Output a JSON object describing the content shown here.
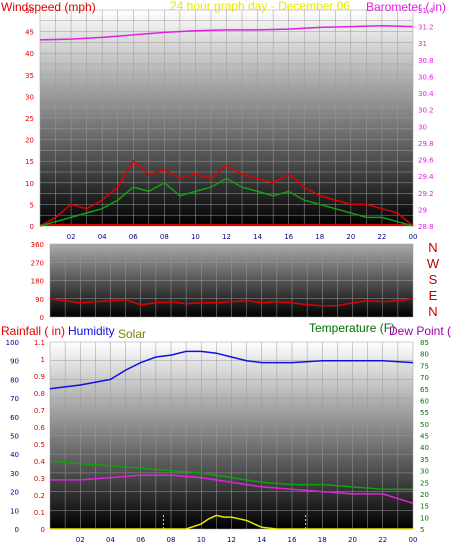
{
  "colors": {
    "red": "#e00000",
    "magenta": "#e020e0",
    "yellow": "#e8e800",
    "blue": "#1010e0",
    "green": "#10a010",
    "darkgreen": "#007000",
    "olive": "#808000",
    "navy": "#000080",
    "dewmagenta": "#a000a0"
  },
  "chart_data": [
    {
      "type": "line",
      "title": "24 hour graph day - December 06",
      "left_axis_label": "Windspeed (mph)",
      "right_axis_label": "Barometer ( in)",
      "x_ticks": [
        "02",
        "04",
        "06",
        "08",
        "10",
        "12",
        "14",
        "16",
        "18",
        "20",
        "22",
        "00"
      ],
      "ylim_left": [
        0,
        50
      ],
      "yticks_left": [
        "0",
        "5",
        "10",
        "15",
        "20",
        "25",
        "30",
        "35",
        "40",
        "45",
        "50"
      ],
      "ylim_right": [
        28.8,
        31.4
      ],
      "yticks_right": [
        "28.8",
        "29",
        "29.2",
        "29.4",
        "29.6",
        "29.8",
        "30",
        "30.2",
        "30.4",
        "30.6",
        "30.8",
        "31",
        "31.2",
        "31.4"
      ],
      "series": [
        {
          "name": "Barometer",
          "x": [
            0,
            2,
            4,
            6,
            8,
            10,
            12,
            14,
            16,
            18,
            20,
            22,
            24
          ],
          "y": [
            31.04,
            31.05,
            31.07,
            31.1,
            31.13,
            31.15,
            31.16,
            31.16,
            31.17,
            31.19,
            31.2,
            31.21,
            31.2
          ]
        },
        {
          "name": "Windspeed",
          "x": [
            0,
            1,
            2,
            3,
            4,
            5,
            6,
            7,
            8,
            9,
            10,
            11,
            12,
            13,
            14,
            15,
            16,
            17,
            18,
            19,
            20,
            21,
            22,
            23,
            24
          ],
          "y": [
            0,
            1,
            2,
            3,
            4,
            6,
            9,
            8,
            10,
            7,
            8,
            9,
            11,
            9,
            8,
            7,
            8,
            6,
            5,
            4,
            3,
            2,
            2,
            1,
            0
          ]
        },
        {
          "name": "Gust",
          "x": [
            0,
            1,
            2,
            3,
            4,
            5,
            6,
            7,
            8,
            9,
            10,
            11,
            12,
            13,
            14,
            15,
            16,
            17,
            18,
            19,
            20,
            21,
            22,
            23,
            24
          ],
          "y": [
            0,
            2,
            5,
            4,
            6,
            9,
            15,
            12,
            13,
            11,
            12,
            11,
            14,
            12,
            11,
            10,
            12,
            9,
            7,
            6,
            5,
            5,
            4,
            3,
            0
          ]
        }
      ]
    },
    {
      "type": "line",
      "title": "Wind direction",
      "compass_labels": [
        "N",
        "W",
        "S",
        "E",
        "N"
      ],
      "ylim": [
        0,
        360
      ],
      "yticks": [
        "0",
        "90",
        "180",
        "270",
        "360"
      ],
      "series": [
        {
          "name": "Direction",
          "x": [
            0,
            1,
            2,
            3,
            4,
            5,
            6,
            7,
            8,
            9,
            10,
            11,
            12,
            13,
            14,
            15,
            16,
            17,
            18,
            19,
            20,
            21,
            22,
            23,
            24
          ],
          "y": [
            90,
            80,
            70,
            75,
            80,
            85,
            60,
            70,
            75,
            65,
            70,
            70,
            75,
            80,
            70,
            75,
            70,
            60,
            55,
            55,
            70,
            80,
            75,
            80,
            90
          ]
        }
      ]
    },
    {
      "type": "line",
      "left_axis_labels": [
        "Rainfall ( in)",
        "Humidity",
        "Solar"
      ],
      "right_axis_labels": [
        "Temperature (F)",
        "Dew Point ("
      ],
      "x_ticks": [
        "02",
        "04",
        "06",
        "08",
        "10",
        "12",
        "14",
        "16",
        "18",
        "20",
        "22",
        "00"
      ],
      "ylim_humidity": [
        0,
        100
      ],
      "yticks_humidity": [
        "0",
        "10",
        "20",
        "30",
        "40",
        "50",
        "60",
        "70",
        "80",
        "90",
        "100"
      ],
      "ylim_rain": [
        0,
        1.1
      ],
      "yticks_rain": [
        "0",
        "0.1",
        "0.2",
        "0.3",
        "0.4",
        "0.5",
        "0.6",
        "0.7",
        "0.8",
        "0.9",
        "1",
        "1.1"
      ],
      "ylim_temp": [
        5,
        85
      ],
      "yticks_temp": [
        "5",
        "10",
        "15",
        "20",
        "25",
        "30",
        "35",
        "40",
        "45",
        "50",
        "55",
        "60",
        "65",
        "70",
        "75",
        "80",
        "85"
      ],
      "series": [
        {
          "name": "Humidity",
          "x": [
            0,
            2,
            4,
            5,
            6,
            7,
            8,
            9,
            10,
            11,
            12,
            13,
            14,
            16,
            18,
            20,
            22,
            24
          ],
          "y": [
            75,
            77,
            80,
            85,
            89,
            92,
            93,
            95,
            95,
            94,
            92,
            90,
            89,
            89,
            90,
            90,
            90,
            89
          ]
        },
        {
          "name": "Temperature",
          "x": [
            0,
            2,
            4,
            6,
            8,
            10,
            12,
            14,
            16,
            18,
            20,
            22,
            24
          ],
          "y": [
            34,
            33,
            32,
            31,
            30,
            29,
            27,
            25,
            24,
            24,
            23,
            22,
            22
          ]
        },
        {
          "name": "Dew Point",
          "x": [
            0,
            2,
            4,
            6,
            8,
            10,
            12,
            14,
            16,
            18,
            20,
            22,
            24
          ],
          "y": [
            26,
            26,
            27,
            28,
            28,
            27,
            25,
            23,
            22,
            21,
            20,
            20,
            16
          ]
        },
        {
          "name": "Solar",
          "x": [
            0,
            9,
            10,
            10.5,
            11,
            11.5,
            12,
            12.5,
            13,
            13.5,
            14,
            15,
            24
          ],
          "y": [
            0,
            0,
            0.03,
            0.06,
            0.08,
            0.07,
            0.07,
            0.06,
            0.05,
            0.03,
            0.01,
            0,
            0
          ]
        }
      ]
    }
  ]
}
